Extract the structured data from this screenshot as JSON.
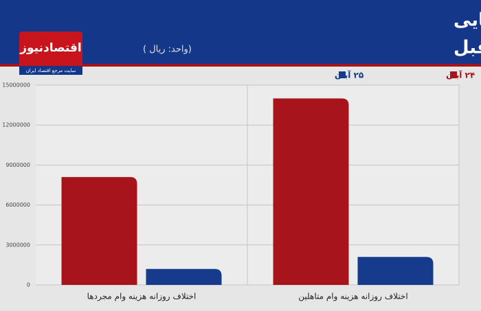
{
  "chart_data": {
    "type": "bar",
    "title": "مقایسه اختلاف روزانه هزینه نهایی",
    "subtitle": "وام مسکن نسبت به روز قبل",
    "unit": "(واحد: ریال )",
    "logo": "اقتصادنیوز",
    "logo_tagline": "سایت مرجع اقتصاد ایران",
    "categories": [
      "اختلاف روزانه هزینه وام مجردها",
      "اختلاف روزانه هزینه وام متاهلین"
    ],
    "series": [
      {
        "name": "۲۴ آبان",
        "color": "#a8141c",
        "values": [
          8100000,
          14000000
        ]
      },
      {
        "name": "۲۵ آبان",
        "color": "#163b8c",
        "values": [
          1200000,
          2100000
        ]
      }
    ],
    "ylim": [
      0,
      15000000
    ],
    "yticks": [
      0,
      3000000,
      6000000,
      9000000,
      12000000,
      15000000
    ],
    "grid": true,
    "legend": "top-right"
  }
}
